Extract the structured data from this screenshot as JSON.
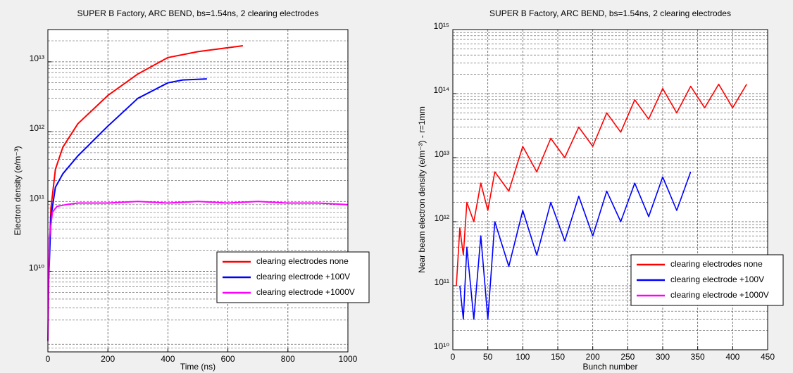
{
  "chart_data": [
    {
      "type": "line",
      "title": "SUPER B Factory, ARC BEND, bs=1.54ns, 2 clearing electrodes",
      "x_label": "Time (ns)",
      "y_label": "Electron density (e/m⁻³)",
      "xlim": [
        0,
        1000
      ],
      "xticks": [
        0,
        200,
        400,
        600,
        800,
        1000
      ],
      "ylim": [
        700000000,
        29000000000000
      ],
      "y_log": true,
      "yticks": [
        {
          "value": 10000000000,
          "label": "10¹⁰"
        },
        {
          "value": 100000000000,
          "label": "10¹¹"
        },
        {
          "value": 1000000000000,
          "label": "10¹²"
        },
        {
          "value": 10000000000000,
          "label": "10¹³"
        }
      ],
      "grid": true,
      "legend": "lower right",
      "series": [
        {
          "name": "clearing electrodes none",
          "color": "#ff0000",
          "x": [
            3,
            10,
            25,
            50,
            100,
            200,
            300,
            400,
            500,
            650
          ],
          "values": [
            10000000000,
            80000000000,
            290000000000,
            600000000000,
            1300000000000,
            3300000000000,
            6700000000000,
            11500000000000,
            14000000000000,
            17000000000000
          ]
        },
        {
          "name": "clearing electrode +100V",
          "color": "#0000ff",
          "x": [
            3,
            10,
            25,
            50,
            100,
            200,
            300,
            400,
            450,
            530
          ],
          "values": [
            8000000000,
            60000000000,
            160000000000,
            250000000000,
            450000000000,
            1200000000000,
            3000000000000,
            5000000000000,
            5500000000000,
            5700000000000
          ]
        },
        {
          "name": "clearing electrode +1000V",
          "color": "#ff00ff",
          "x": [
            0,
            5,
            15,
            30,
            60,
            100,
            200,
            300,
            400,
            500,
            600,
            700,
            800,
            900,
            1000
          ],
          "values": [
            1000000000,
            30000000000,
            70000000000,
            85000000000,
            90000000000,
            95000000000,
            95000000000,
            100000000000,
            95000000000,
            100000000000,
            95000000000,
            100000000000,
            95000000000,
            95000000000,
            90000000000
          ]
        }
      ]
    },
    {
      "type": "line",
      "title": "SUPER B Factory, ARC BEND, bs=1.54ns, 2 clearing electrodes",
      "x_label": "Bunch number",
      "y_label": "Near beam electron density (e/m⁻³) - r=1mm",
      "xlim": [
        0,
        450
      ],
      "xticks": [
        0,
        50,
        100,
        150,
        200,
        250,
        300,
        350,
        400,
        450
      ],
      "ylim": [
        10000000000,
        1000000000000000
      ],
      "y_log": true,
      "yticks": [
        {
          "value": 10000000000,
          "label": "10¹⁰"
        },
        {
          "value": 100000000000,
          "label": "10¹¹"
        },
        {
          "value": 1000000000000,
          "label": "10¹²"
        },
        {
          "value": 10000000000000,
          "label": "10¹³"
        },
        {
          "value": 100000000000000,
          "label": "10¹⁴"
        },
        {
          "value": 1000000000000000,
          "label": "10¹⁵"
        }
      ],
      "grid": true,
      "legend": "lower right",
      "series": [
        {
          "name": "clearing electrodes none",
          "color": "#ff0000",
          "x": [
            5,
            10,
            15,
            20,
            30,
            40,
            50,
            60,
            80,
            100,
            120,
            140,
            160,
            180,
            200,
            220,
            240,
            260,
            280,
            300,
            320,
            340,
            360,
            380,
            400,
            420
          ],
          "values": [
            100000000000,
            800000000000,
            300000000000,
            2000000000000,
            1000000000000,
            4000000000000,
            1500000000000,
            6000000000000,
            3000000000000,
            15000000000000,
            6000000000000,
            20000000000000,
            10000000000000,
            30000000000000,
            15000000000000,
            50000000000000,
            25000000000000,
            80000000000000,
            40000000000000,
            120000000000000,
            50000000000000,
            130000000000000,
            60000000000000,
            140000000000000,
            60000000000000,
            140000000000000
          ]
        },
        {
          "name": "clearing electrode +100V",
          "color": "#0000ff",
          "x": [
            10,
            15,
            20,
            30,
            40,
            50,
            60,
            80,
            100,
            120,
            140,
            160,
            180,
            200,
            220,
            240,
            260,
            280,
            300,
            320,
            340
          ],
          "values": [
            100000000000,
            30000000000,
            400000000000,
            30000000000,
            600000000000,
            30000000000,
            1000000000000,
            200000000000,
            1500000000000,
            300000000000,
            2000000000000,
            500000000000,
            2500000000000,
            600000000000,
            3000000000000,
            1000000000000,
            4000000000000,
            1200000000000,
            5000000000000,
            1500000000000,
            6000000000000
          ]
        },
        {
          "name": "clearing electrode +1000V",
          "color": "#ff00ff",
          "x": [],
          "values": []
        }
      ]
    }
  ]
}
